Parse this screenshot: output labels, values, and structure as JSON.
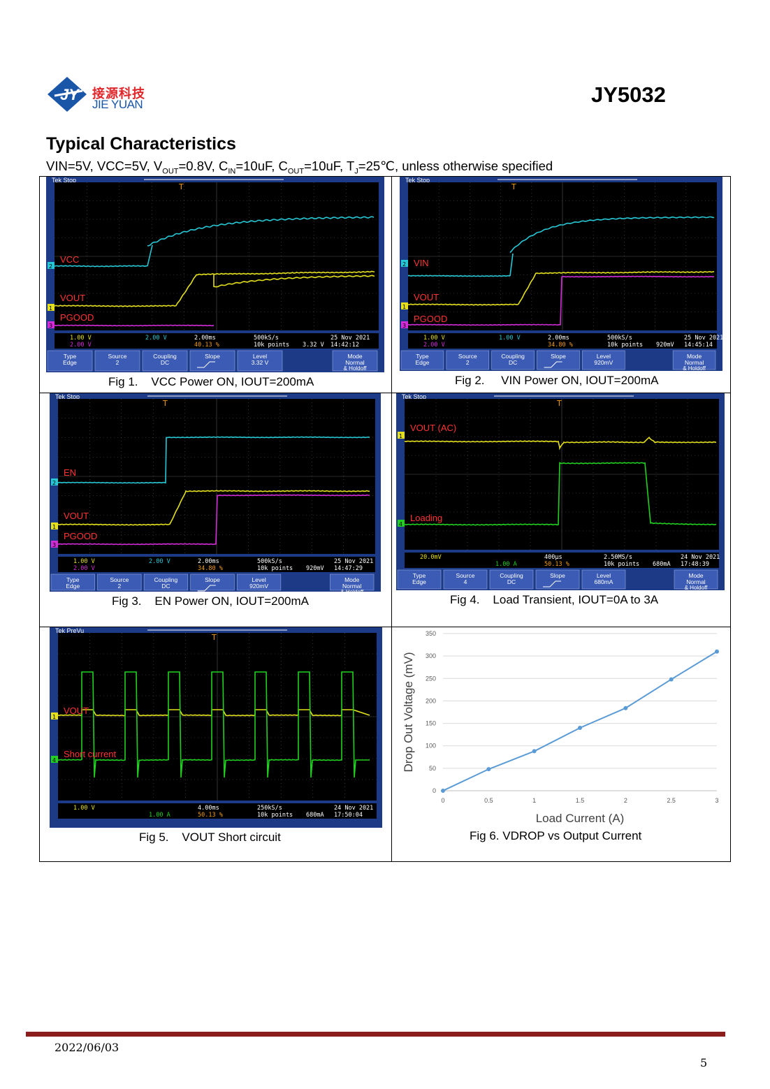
{
  "header": {
    "company_cn": "接源科技",
    "company_en": "JIE YUAN",
    "part_number": "JY5032"
  },
  "section": {
    "title": "Typical Characteristics",
    "conditions": {
      "vin": "VIN=5V, VCC=5V, V",
      "vout_sub": "OUT",
      "vout_val": "=0.8V, C",
      "cin_sub": "IN",
      "cin_val": "=10uF, C",
      "cout_sub": "OUT",
      "cout_val": "=10uF, T",
      "tj_sub": "J",
      "tj_val": "=25℃, unless otherwise specified"
    }
  },
  "figures": [
    {
      "caption": "Fig 1.    VCC Power ON, IOUT=200mA",
      "tek": "Tek Stop",
      "labels": [
        "VCC",
        "VOUT",
        "PGOOD"
      ],
      "status": {
        "ch1": "1.00 V",
        "ch3": "2.00 V",
        "ch2": "2.00 V",
        "time": "2.00ms",
        "pos": "40.13 %",
        "rate": "500kS/s",
        "points": "10k points",
        "trig": "3.32 V",
        "date": "25 Nov 2021",
        "clock": "14:42:12"
      },
      "menu": {
        "type": "Type",
        "type_v": "Edge",
        "source": "Source",
        "source_v": "2",
        "coupling": "Coupling",
        "coupling_v": "DC",
        "slope": "Slope",
        "level": "Level",
        "level_v": "3.32 V",
        "mode": "Mode",
        "mode_v": "Normal",
        "mode_v2": "& Holdoff"
      }
    },
    {
      "caption": "Fig 2.     VIN Power ON, IOUT=200mA",
      "tek": "Tek Stop",
      "labels": [
        "VIN",
        "VOUT",
        "PGOOD"
      ],
      "status": {
        "ch1": "1.00 V",
        "ch3": "2.00 V",
        "ch2": "1.00 V",
        "time": "2.00ms",
        "pos": "34.80 %",
        "rate": "500kS/s",
        "points": "10k points",
        "trig": "920mV",
        "date": "25 Nov 2021",
        "clock": "14:45:14"
      },
      "menu": {
        "type": "Type",
        "type_v": "Edge",
        "source": "Source",
        "source_v": "2",
        "coupling": "Coupling",
        "coupling_v": "DC",
        "slope": "Slope",
        "level": "Level",
        "level_v": "920mV",
        "mode": "Mode",
        "mode_v": "Normal",
        "mode_v2": "& Holdoff"
      }
    },
    {
      "caption": "Fig 3.    EN Power ON, IOUT=200mA",
      "tek": "Tek Stop",
      "labels": [
        "EN",
        "VOUT",
        "PGOOD"
      ],
      "status": {
        "ch1": "1.00 V",
        "ch3": "2.00 V",
        "ch2": "2.00 V",
        "time": "2.00ms",
        "pos": "34.80 %",
        "rate": "500kS/s",
        "points": "10k points",
        "trig": "920mV",
        "date": "25 Nov 2021",
        "clock": "14:47:29"
      },
      "menu": {
        "type": "Type",
        "type_v": "Edge",
        "source": "Source",
        "source_v": "2",
        "coupling": "Coupling",
        "coupling_v": "DC",
        "slope": "Slope",
        "level": "Level",
        "level_v": "920mV",
        "mode": "Mode",
        "mode_v": "Normal",
        "mode_v2": "& Holdoff"
      }
    },
    {
      "caption": "Fig 4.    Load Transient, IOUT=0A to 3A",
      "tek": "Tek Stop",
      "labels": [
        "VOUT (AC)",
        "Loading"
      ],
      "status": {
        "ch1": "20.0mV",
        "ch4": "1.00 A",
        "time": "400µs",
        "pos": "50.13 %",
        "rate": "2.50MS/s",
        "points": "10k points",
        "trig": "680mA",
        "date": "24 Nov 2021",
        "clock": "17:48:39"
      },
      "menu": {
        "type": "Type",
        "type_v": "Edge",
        "source": "Source",
        "source_v": "4",
        "coupling": "Coupling",
        "coupling_v": "DC",
        "slope": "Slope",
        "level": "Level",
        "level_v": "680mA",
        "mode": "Mode",
        "mode_v": "Normal",
        "mode_v2": "& Holdoff"
      }
    },
    {
      "caption": "Fig 5.    VOUT Short circuit",
      "tek": "Tek PreVu",
      "labels": [
        "VOUT",
        "Short current"
      ],
      "status": {
        "ch1": "1.00 V",
        "ch4": "1.00 A",
        "time": "4.00ms",
        "pos": "50.13 %",
        "rate": "250kS/s",
        "points": "10k points",
        "trig": "680mA",
        "date": "24 Nov 2021",
        "clock": "17:50:04"
      }
    },
    {
      "caption": "Fig 6. VDROP vs Output Current"
    }
  ],
  "chart_data": {
    "type": "line",
    "xlabel": "Load Current (A)",
    "ylabel": "Drop Out Voltage (mV)",
    "x": [
      0,
      0.5,
      1,
      1.5,
      2,
      2.5,
      3
    ],
    "xticks": [
      "0",
      "0.5",
      "1",
      "1.5",
      "2",
      "2.5",
      "3"
    ],
    "yticks": [
      "0",
      "50",
      "100",
      "150",
      "200",
      "250",
      "300",
      "350"
    ],
    "ylim": [
      0,
      350
    ],
    "xlim": [
      0,
      3
    ],
    "grid": true,
    "color": "#5b9bd5",
    "series": [
      {
        "values": [
          0,
          48,
          88,
          140,
          184,
          248,
          310
        ]
      }
    ]
  },
  "footer": {
    "date": "2022/06/03",
    "page": "5"
  }
}
